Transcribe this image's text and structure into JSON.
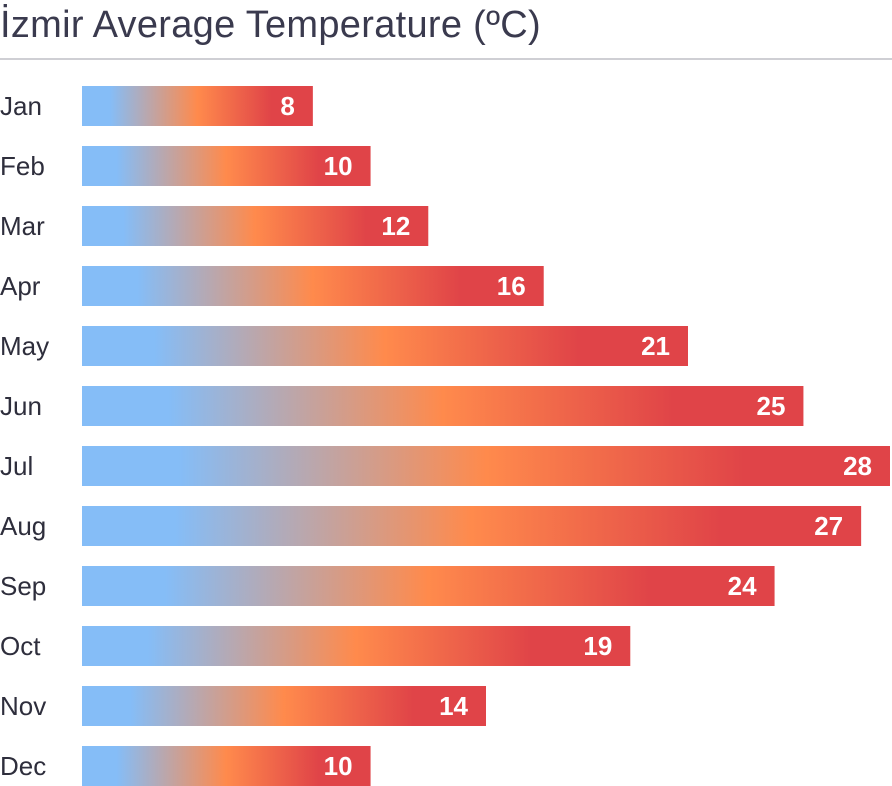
{
  "chart_data": {
    "type": "bar",
    "orientation": "horizontal",
    "title": "İzmir Average Temperature (ºC)",
    "xlabel": "",
    "ylabel": "",
    "xlim": [
      0,
      28
    ],
    "grid": false,
    "legend": "none",
    "categories": [
      "Jan",
      "Feb",
      "Mar",
      "Apr",
      "May",
      "Jun",
      "Jul",
      "Aug",
      "Sep",
      "Oct",
      "Nov",
      "Dec"
    ],
    "values": [
      8,
      10,
      12,
      16,
      21,
      25,
      28,
      27,
      24,
      19,
      14,
      10
    ],
    "data_labels": [
      "8",
      "10",
      "12",
      "16",
      "21",
      "25",
      "28",
      "27",
      "24",
      "19",
      "14",
      "10"
    ]
  },
  "colors": {
    "gradient_cold": "#85bdf7",
    "gradient_mid": "#ff8a4c",
    "gradient_hot": "#e04448",
    "title_text": "#3a3a4e",
    "axis_text": "#2e2e3c",
    "value_text": "#ffffff",
    "divider": "#cfcfd4"
  }
}
